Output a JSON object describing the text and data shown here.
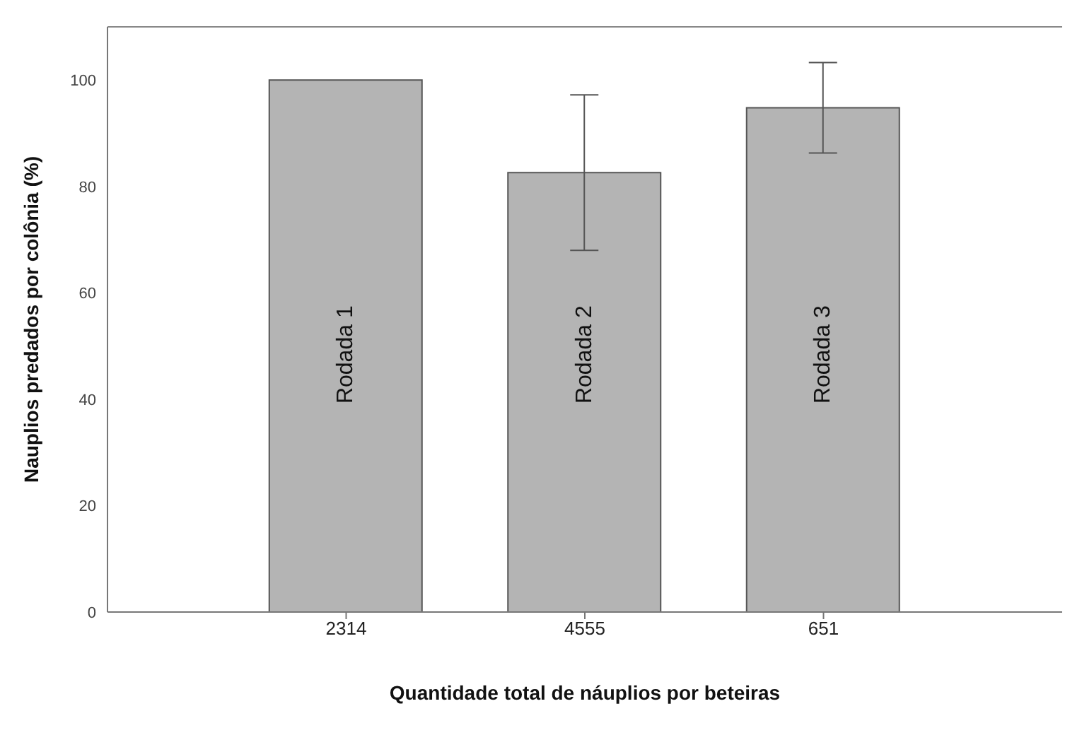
{
  "chart_data": {
    "type": "bar",
    "xlabel": "Quantidade total de náuplios por beteiras",
    "ylabel": "Nauplios predados por colônia (%)",
    "categories": [
      "2314",
      "4555",
      "651"
    ],
    "values": [
      100,
      82.6,
      94.8
    ],
    "errors": [
      0,
      14.6,
      8.5
    ],
    "color": "#b4b4b4",
    "ylim": [
      0,
      110
    ],
    "yticks": [
      0,
      20,
      40,
      60,
      80,
      100
    ],
    "grid": false,
    "annotations": [
      "Rodada 1",
      "Rodada 2",
      "Rodada 3"
    ]
  }
}
